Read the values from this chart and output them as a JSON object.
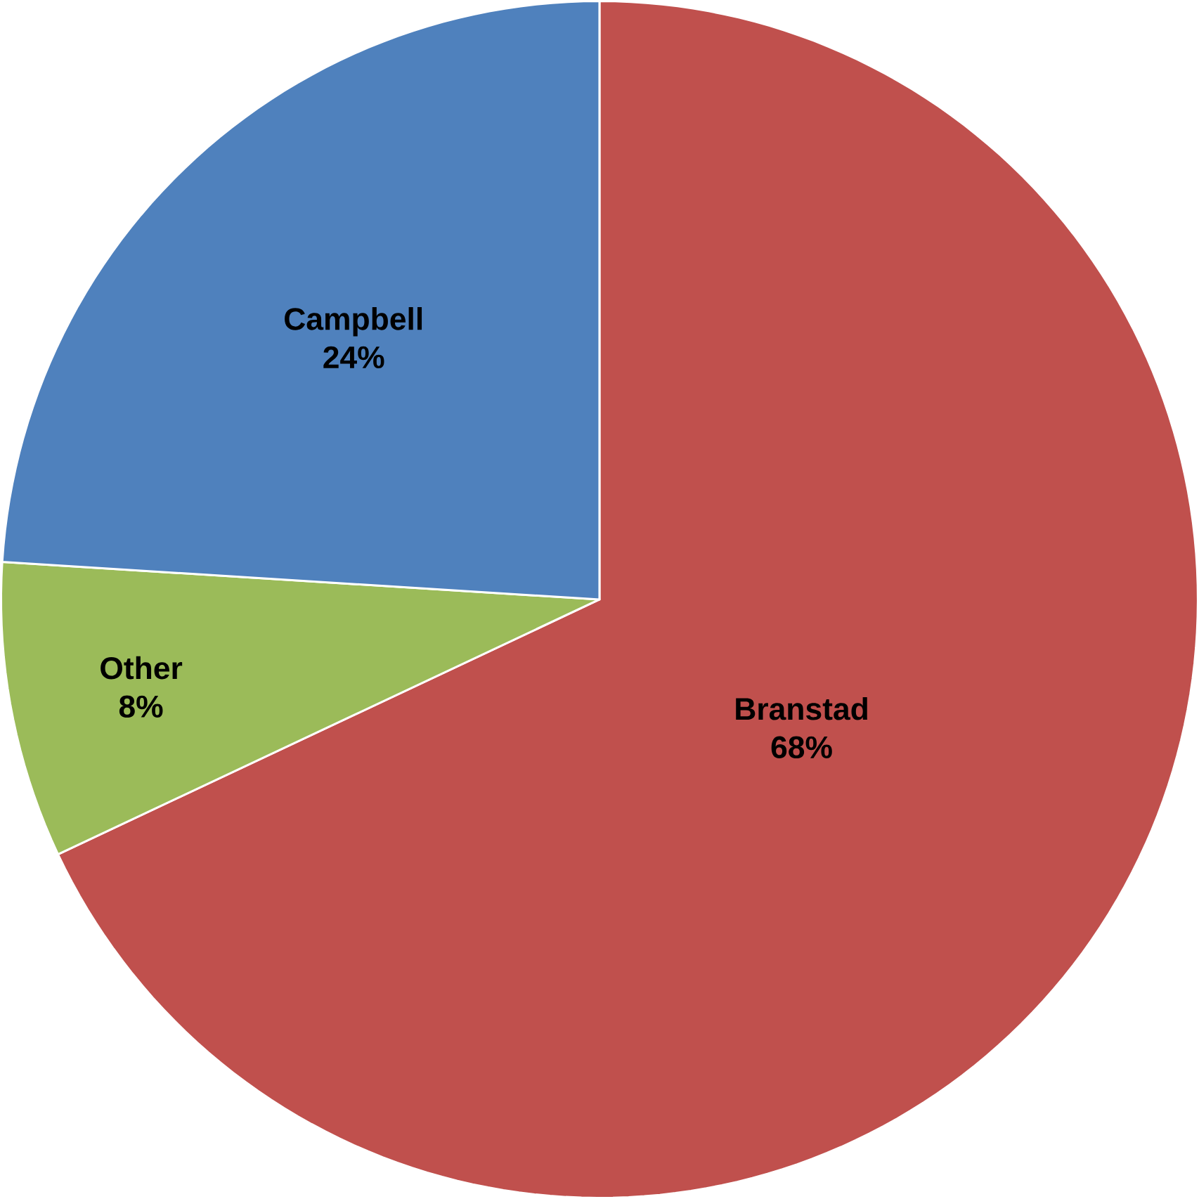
{
  "chart_data": {
    "type": "pie",
    "categories": [
      "Branstad",
      "Other",
      "Campbell"
    ],
    "values": [
      68,
      8,
      24
    ],
    "value_labels": [
      "68%",
      "8%",
      "24%"
    ],
    "colors": [
      "#c0504d",
      "#9bbb59",
      "#4f81bd"
    ]
  }
}
